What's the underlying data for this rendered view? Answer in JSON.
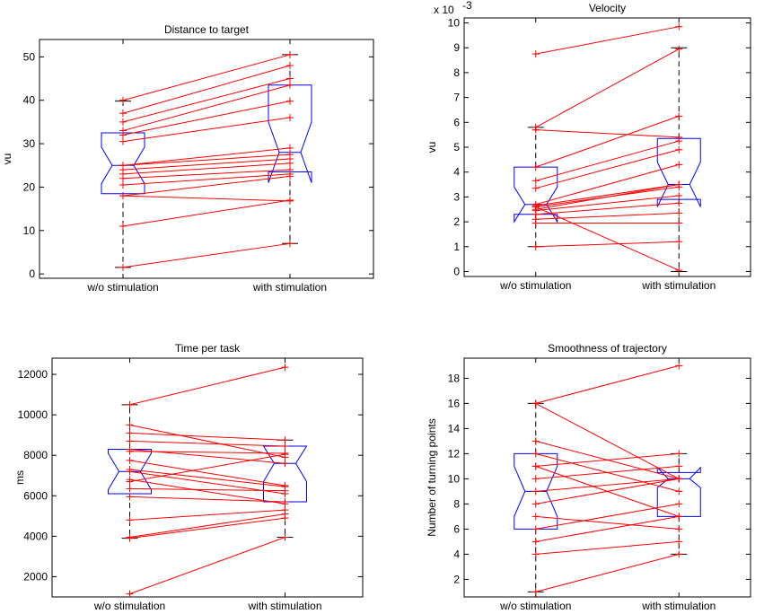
{
  "colors": {
    "pair_line": "#ff0000",
    "box": "#0000ff",
    "whisker": "#000000",
    "axis": "#000000"
  },
  "chart_data": [
    {
      "type": "boxplot",
      "title": "Distance to target",
      "ylabel": "vu",
      "exponent_label": "",
      "categories": [
        "w/o stimulation",
        "with stimulation"
      ],
      "ylim": [
        -1,
        54
      ],
      "yticks": [
        0,
        10,
        20,
        30,
        40,
        50
      ],
      "ytick_labels": [
        "0",
        "10",
        "20",
        "30",
        "40",
        "50"
      ],
      "boxes": [
        {
          "min": 1.5,
          "q1": 18.5,
          "median": 25,
          "q3": 32.5,
          "max": 39.8,
          "notch_lo": 20.8,
          "notch_hi": 29.2
        },
        {
          "min": 7,
          "q1": 23.5,
          "median": 28,
          "q3": 43.5,
          "max": 50.5,
          "notch_lo": 21,
          "notch_hi": 35
        }
      ],
      "pairs": [
        [
          1.5,
          7
        ],
        [
          11,
          17
        ],
        [
          18,
          16.8
        ],
        [
          18,
          22.5
        ],
        [
          20.5,
          23
        ],
        [
          22,
          24
        ],
        [
          23,
          25.5
        ],
        [
          24,
          26.5
        ],
        [
          25,
          27.5
        ],
        [
          25,
          29
        ],
        [
          30.5,
          36
        ],
        [
          32,
          39.8
        ],
        [
          33,
          43.5
        ],
        [
          35,
          45
        ],
        [
          37,
          48
        ],
        [
          40,
          50.5
        ]
      ]
    },
    {
      "type": "boxplot",
      "title": "Velocity",
      "ylabel": "vu",
      "exponent_label": "x 10",
      "exponent_power": "-3",
      "categories": [
        "w/o stimulation",
        "with stimulation"
      ],
      "ylim": [
        -0.2,
        10.2
      ],
      "yticks": [
        0,
        1,
        2,
        3,
        4,
        5,
        6,
        7,
        8,
        9,
        10
      ],
      "ytick_labels": [
        "0",
        "1",
        "2",
        "3",
        "4",
        "5",
        "6",
        "7",
        "8",
        "9",
        "10"
      ],
      "boxes": [
        {
          "min": 1,
          "q1": 2.3,
          "median": 2.7,
          "q3": 4.2,
          "max": 5.8,
          "notch_lo": 2,
          "notch_hi": 3.4
        },
        {
          "min": 0,
          "q1": 2.9,
          "median": 3.5,
          "q3": 5.35,
          "max": 9,
          "notch_lo": 2.6,
          "notch_hi": 4.4
        }
      ],
      "pairs": [
        [
          8.75,
          9.85
        ],
        [
          5.8,
          8.95
        ],
        [
          5.7,
          5.4
        ],
        [
          4.2,
          6.25
        ],
        [
          3.65,
          5.25
        ],
        [
          3.35,
          4.9
        ],
        [
          2.7,
          4.3
        ],
        [
          2.65,
          3.5
        ],
        [
          2.6,
          3.4
        ],
        [
          2.6,
          0.05
        ],
        [
          2.5,
          3.5
        ],
        [
          2.45,
          3.05
        ],
        [
          2.3,
          2.75
        ],
        [
          2.1,
          2.35
        ],
        [
          1.95,
          1.95
        ],
        [
          1,
          1.2
        ]
      ]
    },
    {
      "type": "boxplot",
      "title": "Time per task",
      "ylabel": "ms",
      "exponent_label": "",
      "categories": [
        "w/o stimulation",
        "with stimulation"
      ],
      "ylim": [
        1000,
        12800
      ],
      "yticks": [
        2000,
        4000,
        6000,
        8000,
        10000,
        12000
      ],
      "ytick_labels": [
        "2000",
        "4000",
        "6000",
        "8000",
        "10000",
        "12000"
      ],
      "boxes": [
        {
          "min": 3900,
          "q1": 6100,
          "median": 7200,
          "q3": 8300,
          "max": 10500,
          "notch_lo": 6300,
          "notch_hi": 8100
        },
        {
          "min": 3950,
          "q1": 5700,
          "median": 7600,
          "q3": 8450,
          "max": 8750,
          "notch_lo": 6700,
          "notch_hi": 8450
        }
      ],
      "pairs": [
        [
          1150,
          3950
        ],
        [
          3900,
          4900
        ],
        [
          3950,
          5100
        ],
        [
          4800,
          5300
        ],
        [
          5950,
          5700
        ],
        [
          6350,
          6250
        ],
        [
          6700,
          8050
        ],
        [
          6800,
          5600
        ],
        [
          7200,
          6100
        ],
        [
          7300,
          6450
        ],
        [
          7750,
          6500
        ],
        [
          8200,
          8100
        ],
        [
          8300,
          7600
        ],
        [
          8700,
          8450
        ],
        [
          9100,
          8750
        ],
        [
          9500,
          7900
        ],
        [
          10500,
          12350
        ]
      ]
    },
    {
      "type": "boxplot",
      "title": "Smoothness of trajectory",
      "ylabel": "Number of turning points",
      "exponent_label": "",
      "categories": [
        "w/o stimulation",
        "with stimulation"
      ],
      "ylim": [
        0.6,
        19.6
      ],
      "yticks": [
        2,
        4,
        6,
        8,
        10,
        12,
        14,
        16,
        18
      ],
      "ytick_labels": [
        "2",
        "4",
        "6",
        "8",
        "10",
        "12",
        "14",
        "16",
        "18"
      ],
      "boxes": [
        {
          "min": 1,
          "q1": 6,
          "median": 9,
          "q3": 12,
          "max": 16,
          "notch_lo": 7,
          "notch_hi": 11
        },
        {
          "min": 4,
          "q1": 7,
          "median": 10,
          "q3": 10.5,
          "max": 12,
          "notch_lo": 9.3,
          "notch_hi": 10.9
        }
      ],
      "pairs": [
        [
          1,
          4
        ],
        [
          4,
          5
        ],
        [
          5,
          7
        ],
        [
          6,
          8
        ],
        [
          7,
          6
        ],
        [
          8,
          10
        ],
        [
          9,
          10
        ],
        [
          10,
          11
        ],
        [
          11,
          12
        ],
        [
          11,
          7
        ],
        [
          12,
          9
        ],
        [
          13,
          10
        ],
        [
          16,
          19
        ],
        [
          16,
          10
        ]
      ]
    }
  ]
}
